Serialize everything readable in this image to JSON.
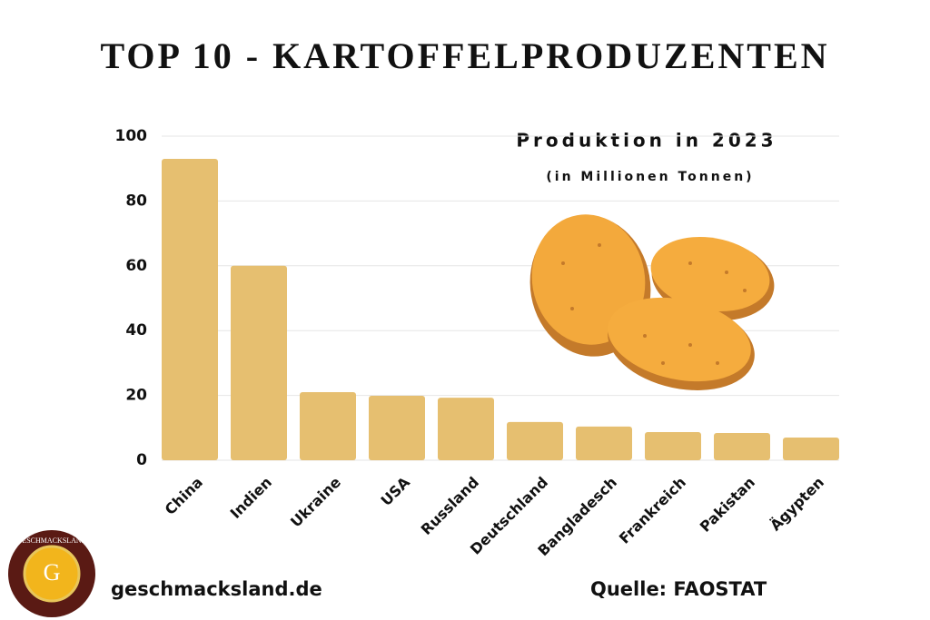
{
  "chart_data": {
    "type": "bar",
    "title": "TOP 10 - KARTOFFELPRODUZENTEN",
    "subtitle": "Produktion in 2023",
    "unit_note": "(in Millionen Tonnen)",
    "categories": [
      "China",
      "Indien",
      "Ukraine",
      "USA",
      "Russland",
      "Deutschland",
      "Bangladesch",
      "Frankreich",
      "Pakistan",
      "Ägypten"
    ],
    "values": [
      93,
      60,
      21,
      19.9,
      19.3,
      11.8,
      10.4,
      8.7,
      8.4,
      7
    ],
    "color": "#e6bf70",
    "ylim": [
      0,
      100
    ],
    "yticks": [
      0,
      20,
      40,
      60,
      80,
      100
    ],
    "grid": true,
    "website": "geschmacksland.de",
    "source": "Quelle: FAOSTAT",
    "logo": {
      "name": "GESCHMACKSLAND",
      "letter": "G"
    }
  }
}
